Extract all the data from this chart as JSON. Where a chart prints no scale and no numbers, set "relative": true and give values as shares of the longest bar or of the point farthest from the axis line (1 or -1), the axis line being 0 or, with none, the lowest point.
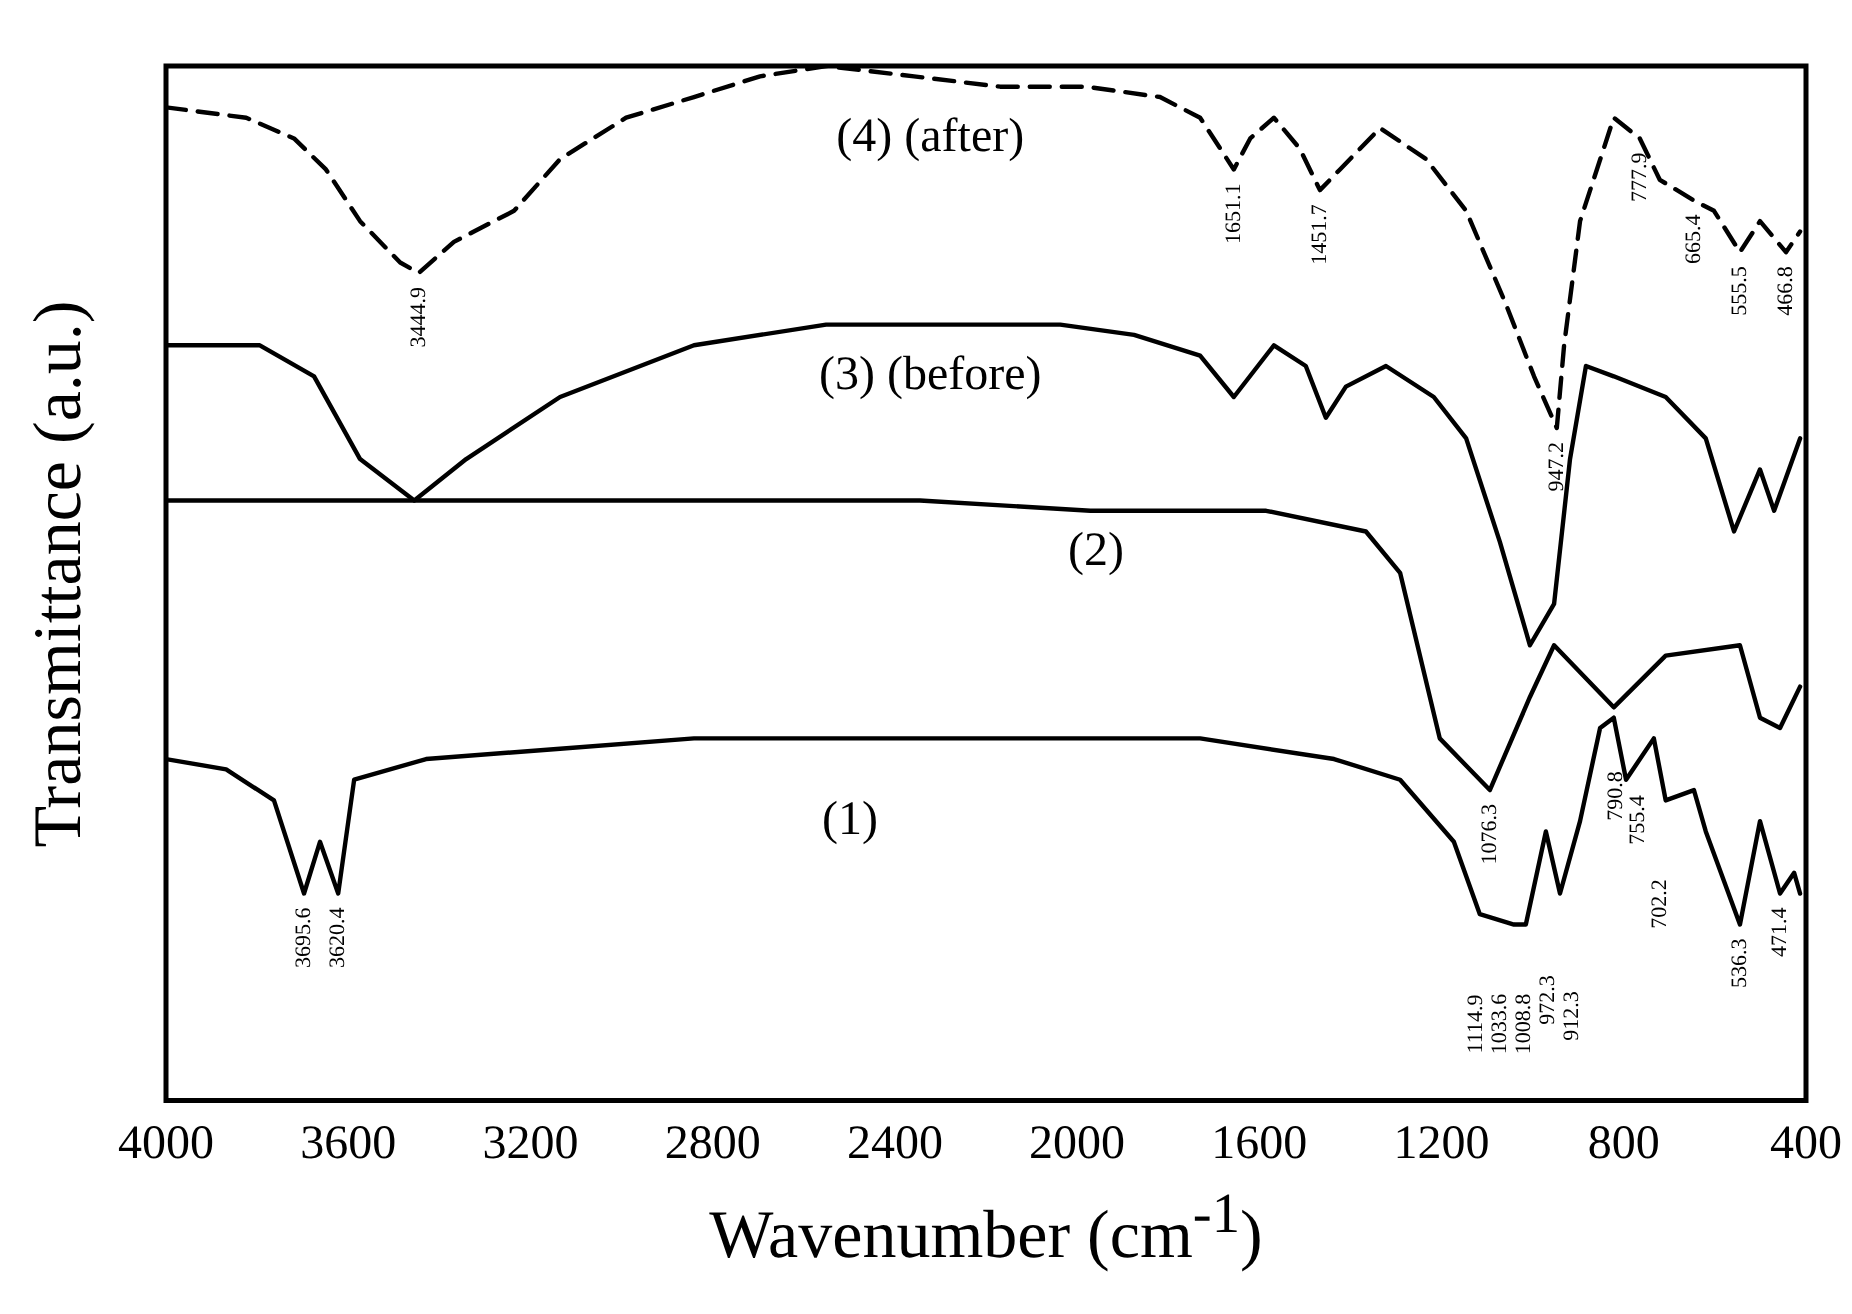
{
  "chart_data": {
    "type": "line",
    "xlabel": "Wavenumber (cm$^{-1}$)",
    "ylabel": "Transmittance (a.u.)",
    "relative": true,
    "xlim": [
      4000,
      400
    ],
    "xticks": [
      4000,
      3600,
      3200,
      2800,
      2400,
      2000,
      1600,
      1200,
      800,
      400
    ],
    "grid": false,
    "legend": false,
    "marker": "none",
    "line_style": "solid",
    "series": [
      {
        "name": "(4) (after)",
        "color": "#000000",
        "line_style": "dashed",
        "x": [
          4000,
          3824,
          3719,
          3649,
          3574,
          3486,
          3445,
          3368,
          3236,
          3135,
          2990,
          2841,
          2696,
          2551,
          2358,
          2169,
          1980,
          1818,
          1730,
          1656,
          1620,
          1568,
          1511,
          1467,
          1423,
          1335,
          1234,
          1146,
          1059,
          997,
          947,
          931,
          896,
          822,
          765,
          721,
          646,
          602,
          545,
          501,
          444,
          413
        ],
        "values": [
          0.96,
          0.95,
          0.93,
          0.9,
          0.85,
          0.81,
          0.8,
          0.83,
          0.86,
          0.91,
          0.95,
          0.97,
          0.99,
          1,
          0.99,
          0.98,
          0.98,
          0.97,
          0.95,
          0.9,
          0.93,
          0.95,
          0.92,
          0.88,
          0.9,
          0.94,
          0.91,
          0.86,
          0.77,
          0.7,
          0.65,
          0.73,
          0.85,
          0.95,
          0.93,
          0.89,
          0.87,
          0.86,
          0.82,
          0.85,
          0.82,
          0.84
        ]
      },
      {
        "name": "(3) (before)",
        "color": "#000000",
        "x": [
          4000,
          3794,
          3675,
          3574,
          3455,
          3341,
          3135,
          2841,
          2551,
          2037,
          1875,
          1730,
          1656,
          1568,
          1498,
          1454,
          1410,
          1322,
          1217,
          1146,
          1072,
          1006,
          953,
          918,
          883,
          822,
          708,
          620,
          558,
          501,
          470,
          413
        ],
        "values": [
          0.73,
          0.73,
          0.7,
          0.62,
          0.58,
          0.62,
          0.68,
          0.73,
          0.75,
          0.75,
          0.74,
          0.72,
          0.68,
          0.73,
          0.71,
          0.66,
          0.69,
          0.71,
          0.68,
          0.64,
          0.54,
          0.44,
          0.48,
          0.62,
          0.71,
          0.7,
          0.68,
          0.64,
          0.55,
          0.61,
          0.57,
          0.64
        ]
      },
      {
        "name": "(2)",
        "color": "#000000",
        "x": [
          4000,
          3486,
          2916,
          2345,
          1971,
          1585,
          1366,
          1291,
          1204,
          1094,
          1006,
          953,
          822,
          708,
          545,
          501,
          457,
          413
        ],
        "values": [
          0.58,
          0.58,
          0.58,
          0.58,
          0.57,
          0.57,
          0.55,
          0.51,
          0.35,
          0.3,
          0.39,
          0.44,
          0.38,
          0.43,
          0.44,
          0.37,
          0.36,
          0.4
        ]
      },
      {
        "name": "(1)",
        "color": "#000000",
        "x": [
          4000,
          3868,
          3763,
          3697,
          3662,
          3622,
          3587,
          3429,
          3135,
          2841,
          2358,
          1730,
          1436,
          1291,
          1173,
          1116,
          1041,
          1015,
          971,
          940,
          896,
          852,
          822,
          795,
          734,
          708,
          646,
          620,
          545,
          501,
          457,
          426,
          413
        ],
        "values": [
          0.33,
          0.32,
          0.29,
          0.2,
          0.25,
          0.2,
          0.31,
          0.33,
          0.34,
          0.35,
          0.35,
          0.35,
          0.33,
          0.31,
          0.25,
          0.18,
          0.17,
          0.17,
          0.26,
          0.2,
          0.27,
          0.36,
          0.37,
          0.31,
          0.35,
          0.29,
          0.3,
          0.26,
          0.17,
          0.27,
          0.2,
          0.22,
          0.2
        ]
      }
    ],
    "annotations": [
      {
        "text": "3444.9",
        "x": 3445,
        "y": 0.8
      },
      {
        "text": "1651.1",
        "x": 1656,
        "y": 0.9
      },
      {
        "text": "1451.7",
        "x": 1467,
        "y": 0.88
      },
      {
        "text": "947.2",
        "x": 947,
        "y": 0.65
      },
      {
        "text": "777.9",
        "x": 765,
        "y": 0.93
      },
      {
        "text": "665.4",
        "x": 646,
        "y": 0.87
      },
      {
        "text": "555.5",
        "x": 545,
        "y": 0.82
      },
      {
        "text": "466.8",
        "x": 444,
        "y": 0.82
      },
      {
        "text": "1076.3",
        "x": 1094,
        "y": 0.3
      },
      {
        "text": "3695.6",
        "x": 3697,
        "y": 0.2
      },
      {
        "text": "3620.4",
        "x": 3622,
        "y": 0.2
      },
      {
        "text": "536.3",
        "x": 545,
        "y": 0.17
      },
      {
        "text": "471.4",
        "x": 457,
        "y": 0.2
      },
      "1114.9",
      "1033.6",
      "1008.8",
      "972.3",
      "912.3",
      "790.8",
      "755.4",
      "702.2"
    ]
  }
}
